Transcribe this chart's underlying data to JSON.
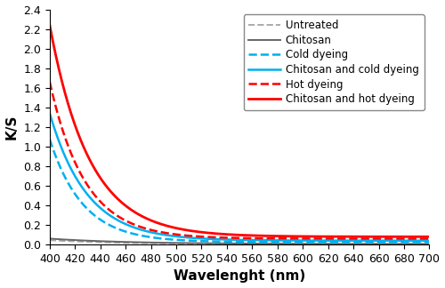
{
  "xlabel": "Wavelenght (nm)",
  "ylabel": "K/S",
  "xlim": [
    400,
    700
  ],
  "ylim": [
    0,
    2.4
  ],
  "x_ticks": [
    400,
    420,
    440,
    460,
    480,
    500,
    520,
    540,
    560,
    580,
    600,
    620,
    640,
    660,
    680,
    700
  ],
  "y_ticks": [
    0,
    0.2,
    0.4,
    0.6,
    0.8,
    1.0,
    1.2,
    1.4,
    1.6,
    1.8,
    2.0,
    2.2,
    2.4
  ],
  "series": [
    {
      "label": "Untreated",
      "color": "#AAAAAA",
      "linestyle": "--",
      "linewidth": 1.4,
      "amp": 0.04,
      "decay": 0.018,
      "baseline": 0.005
    },
    {
      "label": "Chitosan",
      "color": "#666666",
      "linestyle": "-",
      "linewidth": 1.4,
      "amp": 0.055,
      "decay": 0.016,
      "baseline": 0.006
    },
    {
      "label": "Cold dyeing",
      "color": "#00B0F0",
      "linestyle": "--",
      "linewidth": 1.8,
      "amp": 1.05,
      "decay": 0.038,
      "baseline": 0.025
    },
    {
      "label": "Chitosan and cold dyeing",
      "color": "#00B0F0",
      "linestyle": "-",
      "linewidth": 1.8,
      "amp": 1.3,
      "decay": 0.034,
      "baseline": 0.04
    },
    {
      "label": "Hot dyeing",
      "color": "#FF0000",
      "linestyle": "--",
      "linewidth": 1.8,
      "amp": 1.6,
      "decay": 0.036,
      "baseline": 0.06
    },
    {
      "label": "Chitosan and hot dyeing",
      "color": "#FF0000",
      "linestyle": "-",
      "linewidth": 2.0,
      "amp": 2.16,
      "decay": 0.032,
      "baseline": 0.08
    }
  ],
  "legend_loc": "upper right",
  "legend_fontsize": 8.5,
  "background_color": "#ffffff",
  "figure_size": [
    5.0,
    3.24
  ],
  "dpi": 100,
  "xlabel_fontsize": 11,
  "ylabel_fontsize": 11,
  "tick_labelsize": 9
}
